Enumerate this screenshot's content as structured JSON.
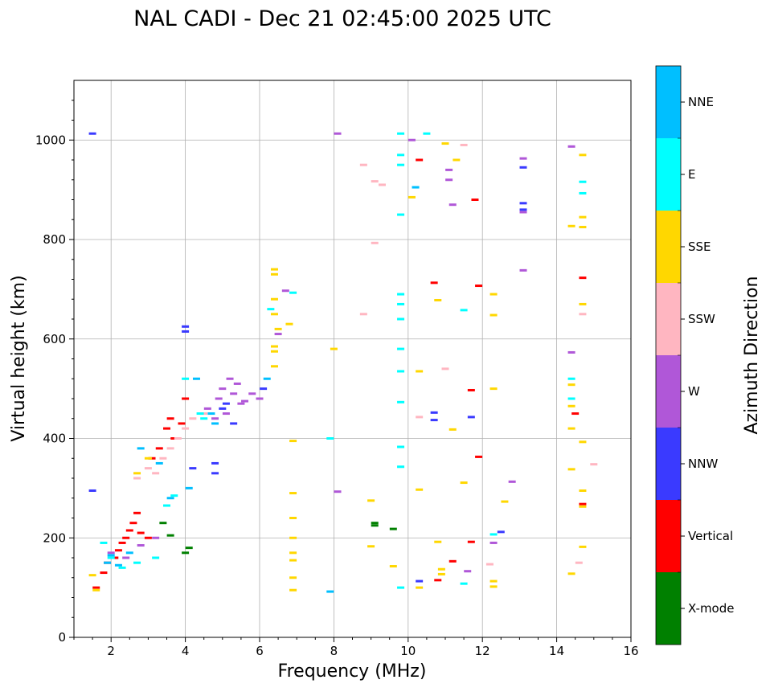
{
  "chart_data": {
    "type": "scatter",
    "title": "NAL CADI - Dec 21 02:45:00 2025 UTC",
    "xlabel": "Frequency (MHz)",
    "ylabel": "Virtual height (km)",
    "xlim": [
      1,
      16
    ],
    "ylim": [
      0,
      1120
    ],
    "xticks": [
      2,
      4,
      6,
      8,
      10,
      12,
      14,
      16
    ],
    "yticks": [
      0,
      200,
      400,
      600,
      800,
      1000
    ],
    "grid": true,
    "colorbar": {
      "label": "Azimuth Direction",
      "categories": [
        {
          "name": "X-mode",
          "color": "#008000"
        },
        {
          "name": "Vertical",
          "color": "#ff0000"
        },
        {
          "name": "NNW",
          "color": "#3a3aff"
        },
        {
          "name": "W",
          "color": "#b057d8"
        },
        {
          "name": "SSW",
          "color": "#ffb6c1"
        },
        {
          "name": "SSE",
          "color": "#ffd700"
        },
        {
          "name": "E",
          "color": "#00ffff"
        },
        {
          "name": "NNE",
          "color": "#00bfff"
        }
      ]
    },
    "series": [
      {
        "name": "X-mode",
        "points": [
          [
            3.4,
            230
          ],
          [
            3.6,
            205
          ],
          [
            4.0,
            170
          ],
          [
            4.1,
            180
          ],
          [
            9.1,
            230
          ],
          [
            9.1,
            225
          ],
          [
            9.6,
            218
          ]
        ]
      },
      {
        "name": "Vertical",
        "points": [
          [
            1.6,
            100
          ],
          [
            1.8,
            130
          ],
          [
            1.9,
            150
          ],
          [
            2.1,
            160
          ],
          [
            2.2,
            175
          ],
          [
            2.3,
            190
          ],
          [
            2.4,
            200
          ],
          [
            2.5,
            215
          ],
          [
            2.6,
            230
          ],
          [
            2.7,
            250
          ],
          [
            2.8,
            210
          ],
          [
            3.0,
            200
          ],
          [
            3.1,
            360
          ],
          [
            3.3,
            380
          ],
          [
            3.5,
            420
          ],
          [
            3.6,
            440
          ],
          [
            3.7,
            400
          ],
          [
            3.9,
            430
          ],
          [
            4.0,
            480
          ],
          [
            10.3,
            960
          ],
          [
            10.7,
            713
          ],
          [
            10.8,
            115
          ],
          [
            11.2,
            153
          ],
          [
            11.7,
            192
          ],
          [
            11.7,
            497
          ],
          [
            11.8,
            880
          ],
          [
            11.9,
            707
          ],
          [
            11.9,
            363
          ],
          [
            14.5,
            450
          ],
          [
            14.7,
            723
          ],
          [
            14.7,
            268
          ]
        ]
      },
      {
        "name": "NNW",
        "points": [
          [
            1.5,
            1013
          ],
          [
            1.5,
            295
          ],
          [
            4.0,
            625
          ],
          [
            4.0,
            615
          ],
          [
            4.2,
            340
          ],
          [
            4.8,
            350
          ],
          [
            4.8,
            330
          ],
          [
            5.0,
            460
          ],
          [
            5.1,
            470
          ],
          [
            5.3,
            430
          ],
          [
            6.1,
            500
          ],
          [
            10.3,
            113
          ],
          [
            10.7,
            452
          ],
          [
            10.7,
            437
          ],
          [
            11.7,
            443
          ],
          [
            12.5,
            212
          ],
          [
            13.1,
            873
          ],
          [
            13.1,
            860
          ],
          [
            13.1,
            945
          ]
        ]
      },
      {
        "name": "W",
        "points": [
          [
            2.0,
            170
          ],
          [
            2.4,
            160
          ],
          [
            2.8,
            185
          ],
          [
            3.2,
            200
          ],
          [
            4.6,
            460
          ],
          [
            4.8,
            440
          ],
          [
            4.9,
            480
          ],
          [
            5.0,
            500
          ],
          [
            5.1,
            450
          ],
          [
            5.2,
            520
          ],
          [
            5.3,
            490
          ],
          [
            5.4,
            510
          ],
          [
            5.5,
            470
          ],
          [
            5.6,
            475
          ],
          [
            5.8,
            490
          ],
          [
            6.0,
            480
          ],
          [
            6.5,
            610
          ],
          [
            6.7,
            697
          ],
          [
            8.1,
            1013
          ],
          [
            8.1,
            293
          ],
          [
            10.1,
            1000
          ],
          [
            11.1,
            940
          ],
          [
            11.1,
            920
          ],
          [
            11.2,
            870
          ],
          [
            11.6,
            133
          ],
          [
            12.3,
            190
          ],
          [
            13.1,
            963
          ],
          [
            13.1,
            855
          ],
          [
            13.1,
            738
          ],
          [
            12.8,
            313
          ],
          [
            14.4,
            987
          ],
          [
            14.4,
            573
          ]
        ]
      },
      {
        "name": "SSW",
        "points": [
          [
            2.7,
            320
          ],
          [
            3.0,
            340
          ],
          [
            3.2,
            330
          ],
          [
            3.4,
            360
          ],
          [
            3.6,
            380
          ],
          [
            3.8,
            400
          ],
          [
            4.0,
            420
          ],
          [
            4.2,
            440
          ],
          [
            4.5,
            450
          ],
          [
            8.8,
            950
          ],
          [
            9.1,
            917
          ],
          [
            9.3,
            910
          ],
          [
            8.8,
            650
          ],
          [
            9.1,
            793
          ],
          [
            10.3,
            443
          ],
          [
            11.0,
            540
          ],
          [
            11.5,
            990
          ],
          [
            12.2,
            147
          ],
          [
            14.6,
            150
          ],
          [
            14.7,
            650
          ],
          [
            15.0,
            348
          ]
        ]
      },
      {
        "name": "SSE",
        "points": [
          [
            1.5,
            125
          ],
          [
            1.6,
            95
          ],
          [
            2.7,
            330
          ],
          [
            3.0,
            360
          ],
          [
            6.4,
            740
          ],
          [
            6.4,
            730
          ],
          [
            6.4,
            680
          ],
          [
            6.4,
            650
          ],
          [
            6.5,
            620
          ],
          [
            6.4,
            585
          ],
          [
            6.4,
            575
          ],
          [
            6.4,
            545
          ],
          [
            6.8,
            630
          ],
          [
            6.9,
            395
          ],
          [
            6.9,
            290
          ],
          [
            6.9,
            240
          ],
          [
            6.9,
            200
          ],
          [
            6.9,
            170
          ],
          [
            6.9,
            155
          ],
          [
            6.9,
            120
          ],
          [
            6.9,
            95
          ],
          [
            8.0,
            580
          ],
          [
            9.0,
            275
          ],
          [
            9.0,
            183
          ],
          [
            9.6,
            143
          ],
          [
            10.1,
            885
          ],
          [
            10.3,
            535
          ],
          [
            10.3,
            297
          ],
          [
            10.3,
            100
          ],
          [
            10.8,
            192
          ],
          [
            10.8,
            678
          ],
          [
            10.9,
            137
          ],
          [
            10.9,
            127
          ],
          [
            11.0,
            993
          ],
          [
            11.2,
            418
          ],
          [
            11.3,
            960
          ],
          [
            11.5,
            311
          ],
          [
            12.3,
            690
          ],
          [
            12.3,
            648
          ],
          [
            12.3,
            500
          ],
          [
            12.3,
            113
          ],
          [
            12.3,
            102
          ],
          [
            12.6,
            273
          ],
          [
            14.4,
            827
          ],
          [
            14.4,
            508
          ],
          [
            14.4,
            465
          ],
          [
            14.4,
            420
          ],
          [
            14.4,
            338
          ],
          [
            14.4,
            128
          ],
          [
            14.7,
            970
          ],
          [
            14.7,
            845
          ],
          [
            14.7,
            825
          ],
          [
            14.7,
            670
          ],
          [
            14.7,
            393
          ],
          [
            14.7,
            295
          ],
          [
            14.7,
            263
          ],
          [
            14.7,
            182
          ]
        ]
      },
      {
        "name": "E",
        "points": [
          [
            1.8,
            190
          ],
          [
            2.0,
            160
          ],
          [
            2.3,
            140
          ],
          [
            2.7,
            150
          ],
          [
            3.2,
            160
          ],
          [
            3.5,
            265
          ],
          [
            3.7,
            285
          ],
          [
            4.0,
            520
          ],
          [
            4.4,
            450
          ],
          [
            4.5,
            440
          ],
          [
            6.3,
            660
          ],
          [
            6.9,
            693
          ],
          [
            7.9,
            400
          ],
          [
            9.8,
            1013
          ],
          [
            9.8,
            970
          ],
          [
            9.8,
            950
          ],
          [
            9.8,
            850
          ],
          [
            9.8,
            690
          ],
          [
            9.8,
            670
          ],
          [
            9.8,
            640
          ],
          [
            9.8,
            580
          ],
          [
            9.8,
            535
          ],
          [
            9.8,
            473
          ],
          [
            9.8,
            383
          ],
          [
            9.8,
            343
          ],
          [
            9.8,
            100
          ],
          [
            10.2,
            905
          ],
          [
            10.5,
            1013
          ],
          [
            11.5,
            658
          ],
          [
            11.5,
            108
          ],
          [
            12.3,
            207
          ],
          [
            14.4,
            520
          ],
          [
            14.4,
            480
          ],
          [
            14.7,
            916
          ],
          [
            14.7,
            893
          ]
        ]
      },
      {
        "name": "NNE",
        "points": [
          [
            1.9,
            150
          ],
          [
            2.0,
            165
          ],
          [
            2.2,
            145
          ],
          [
            2.5,
            170
          ],
          [
            2.8,
            380
          ],
          [
            3.3,
            350
          ],
          [
            3.6,
            280
          ],
          [
            4.1,
            300
          ],
          [
            4.3,
            520
          ],
          [
            4.7,
            450
          ],
          [
            4.8,
            430
          ],
          [
            6.2,
            520
          ],
          [
            7.9,
            92
          ],
          [
            10.2,
            905
          ]
        ]
      }
    ]
  }
}
